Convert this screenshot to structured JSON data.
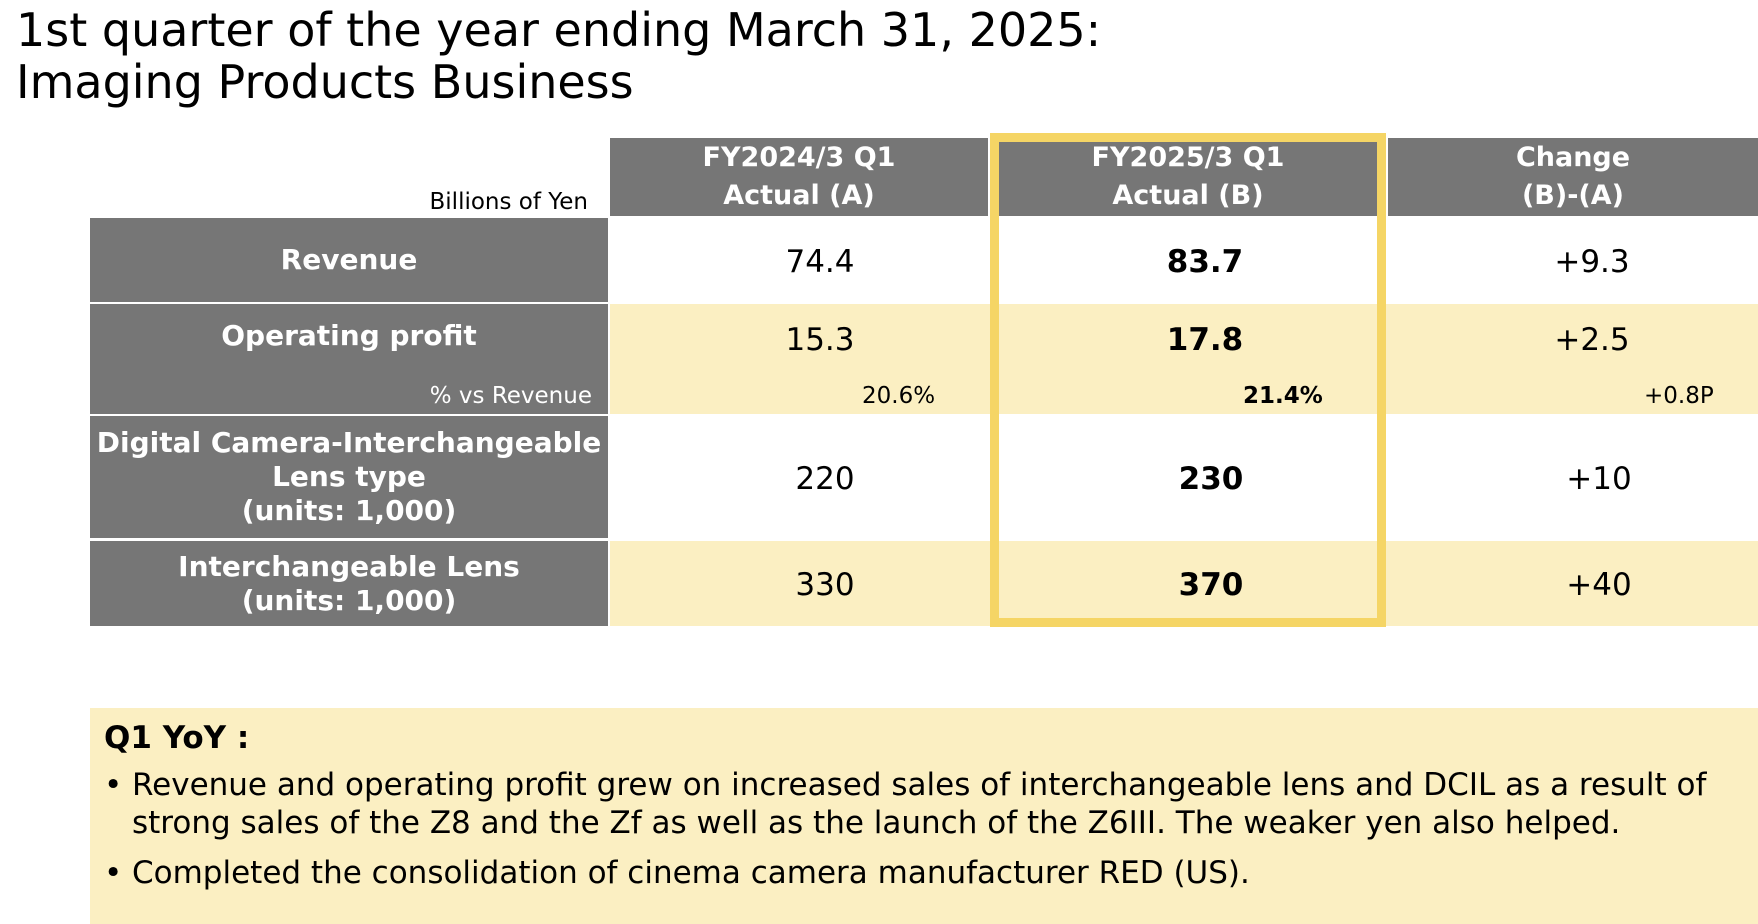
{
  "title": {
    "line1": "1st quarter of the year ending March 31, 2025:",
    "line2": "Imaging Products Business"
  },
  "table": {
    "unit_label": "Billions of Yen",
    "columns": [
      {
        "line1": "FY2024/3 Q1",
        "line2": "Actual (A)"
      },
      {
        "line1": "FY2025/3 Q1",
        "line2": "Actual (B)"
      },
      {
        "line1": "Change",
        "line2": "(B)-(A)"
      }
    ],
    "rows": {
      "revenue": {
        "label": "Revenue",
        "a": "74.4",
        "b": "83.7",
        "change": "+9.3"
      },
      "op": {
        "label": "Operating profit",
        "a": "15.3",
        "b": "17.8",
        "change": "+2.5"
      },
      "margin": {
        "label": "% vs Revenue",
        "a": "20.6%",
        "b": "21.4%",
        "change": "+0.8P"
      },
      "dcil": {
        "line1": "Digital Camera-Interchangeable",
        "line2": "Lens type",
        "line3": "(units: 1,000)",
        "a": "220",
        "b": "230",
        "change": "+10"
      },
      "lens": {
        "line1": "Interchangeable Lens",
        "line2": "(units: 1,000)",
        "a": "330",
        "b": "370",
        "change": "+40"
      }
    },
    "highlight_color": "#f5d565",
    "band_color": "#fbefc2",
    "header_color": "#767676"
  },
  "notes": {
    "heading": "Q1 YoY :",
    "bullet": "•",
    "items": [
      {
        "line1": "Revenue and operating profit grew on increased sales of interchangeable lens and DCIL as a result of",
        "line2": "strong sales of the Z8 and the Zf as well as the launch of the Z6III. The weaker yen also helped."
      },
      {
        "line1": "Completed the consolidation of cinema camera manufacturer RED (US)."
      }
    ]
  }
}
